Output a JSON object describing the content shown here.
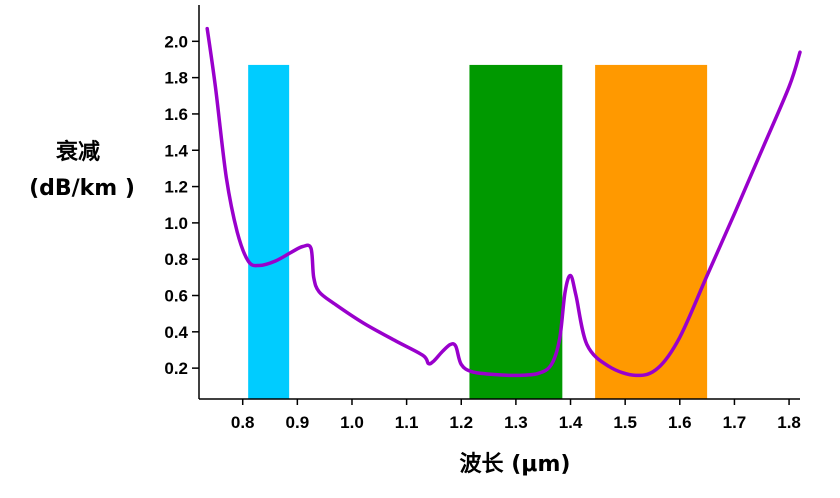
{
  "chart_data": {
    "type": "line",
    "title": "",
    "xlabel": "波长 (μm)",
    "ylabel_line1": "衰减",
    "ylabel_line2": "(dB/km )",
    "xlim": [
      0.72,
      1.82
    ],
    "ylim": [
      0.03,
      2.2
    ],
    "xticks": [
      0.8,
      0.9,
      1.0,
      1.1,
      1.2,
      1.3,
      1.4,
      1.5,
      1.6,
      1.7,
      1.8
    ],
    "xtick_labels": [
      "0.8",
      "0.9",
      "1.0",
      "1.1",
      "1.2",
      "1.3",
      "1.4",
      "1.5",
      "1.6",
      "1.7",
      "1.8"
    ],
    "yticks": [
      0.2,
      0.4,
      0.6,
      0.8,
      1.0,
      1.2,
      1.4,
      1.6,
      1.8,
      2.0
    ],
    "ytick_labels": [
      "0.2",
      "0.4",
      "0.6",
      "0.8",
      "1.0",
      "1.2",
      "1.4",
      "1.6",
      "1.8",
      "2.0"
    ],
    "bands": [
      {
        "x0": 0.81,
        "x1": 0.885,
        "y_top": 1.87,
        "color": "#00ccff"
      },
      {
        "x0": 1.215,
        "x1": 1.385,
        "y_top": 1.87,
        "color": "#009900"
      },
      {
        "x0": 1.445,
        "x1": 1.65,
        "y_top": 1.87,
        "color": "#ff9900"
      }
    ],
    "series": [
      {
        "color": "#9900cc",
        "x": [
          0.735,
          0.75,
          0.77,
          0.79,
          0.81,
          0.83,
          0.86,
          0.89,
          0.91,
          0.925,
          0.93,
          0.94,
          0.97,
          1.02,
          1.08,
          1.13,
          1.14,
          1.15,
          1.165,
          1.18,
          1.19,
          1.2,
          1.22,
          1.26,
          1.3,
          1.34,
          1.365,
          1.38,
          1.39,
          1.4,
          1.41,
          1.43,
          1.47,
          1.52,
          1.56,
          1.6,
          1.65,
          1.7,
          1.75,
          1.8,
          1.82
        ],
        "y": [
          2.07,
          1.75,
          1.25,
          0.95,
          0.79,
          0.765,
          0.79,
          0.84,
          0.87,
          0.86,
          0.7,
          0.62,
          0.55,
          0.45,
          0.35,
          0.27,
          0.225,
          0.24,
          0.29,
          0.33,
          0.32,
          0.22,
          0.18,
          0.165,
          0.16,
          0.17,
          0.22,
          0.36,
          0.62,
          0.71,
          0.6,
          0.33,
          0.21,
          0.16,
          0.2,
          0.37,
          0.71,
          1.05,
          1.4,
          1.75,
          1.94
        ]
      }
    ]
  }
}
